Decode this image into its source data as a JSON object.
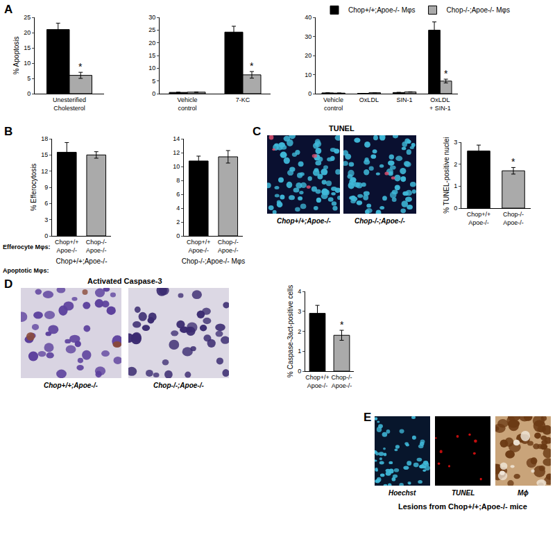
{
  "chart_data": [
    {
      "type": "bar",
      "ylabel": "% Apoptosis",
      "categories": [
        "Unesterified Cholesterol"
      ],
      "series": [
        {
          "name": "Chop+/+;Apoe-/- Mφs",
          "color": "#000000",
          "values": [
            21.0
          ],
          "errors": [
            2.1
          ]
        },
        {
          "name": "Chop-/-;Apoe-/- Mφs",
          "color": "#aaaaaa",
          "values": [
            6.0
          ],
          "errors": [
            1.0
          ]
        }
      ],
      "ylim": [
        0,
        25
      ],
      "yticks": [
        0,
        5,
        10,
        15,
        20,
        25
      ],
      "grid": false,
      "legend": "top",
      "annotations": [
        {
          "text": "*",
          "category": "Unesterified Cholesterol",
          "series": "Chop-/-;Apoe-/- Mφs"
        }
      ]
    },
    {
      "type": "bar",
      "categories": [
        "Vehicle control",
        "7-KC"
      ],
      "series": [
        {
          "name": "Chop+/+;Apoe-/- Mφs",
          "color": "#000000",
          "values": [
            0.5,
            24.2
          ],
          "errors": [
            0.1,
            2.3
          ]
        },
        {
          "name": "Chop-/-;Apoe-/- Mφs",
          "color": "#aaaaaa",
          "values": [
            0.6,
            7.4
          ],
          "errors": [
            0.1,
            1.3
          ]
        }
      ],
      "ylim": [
        0,
        30
      ],
      "yticks": [
        0,
        5,
        10,
        15,
        20,
        25,
        30
      ],
      "grid": false,
      "annotations": [
        {
          "text": "*",
          "category": "7-KC",
          "series": "Chop-/-;Apoe-/- Mφs"
        }
      ]
    },
    {
      "type": "bar",
      "categories": [
        "Vehicle control",
        "OxLDL",
        "SIN-1",
        "OxLDL + SIN-1"
      ],
      "series": [
        {
          "name": "Chop+/+;Apoe-/- Mφs",
          "color": "#000000",
          "values": [
            0.4,
            0.1,
            0.6,
            33.3
          ],
          "errors": [
            0.1,
            0.05,
            0.1,
            4.3
          ]
        },
        {
          "name": "Chop-/-;Apoe-/- Mφs",
          "color": "#aaaaaa",
          "values": [
            0.3,
            0.5,
            0.9,
            6.6
          ],
          "errors": [
            0.05,
            0.05,
            0.1,
            1.0
          ]
        }
      ],
      "ylim": [
        0,
        40
      ],
      "yticks": [
        0,
        10,
        20,
        30,
        40
      ],
      "grid": false,
      "annotations": [
        {
          "text": "*",
          "category": "OxLDL + SIN-1",
          "series": "Chop-/-;Apoe-/- Mφs"
        }
      ]
    },
    {
      "type": "bar",
      "ylabel": "% Efferocytosis",
      "xlabel": "Chop+/+;Apoe-/-",
      "categories": [
        "Chop+/+ Apoe-/-",
        "Chop-/- Apoe-/-"
      ],
      "values": [
        15.5,
        15.0
      ],
      "errors": [
        1.8,
        0.6
      ],
      "colors": [
        "#000000",
        "#aaaaaa"
      ],
      "ylim": [
        0,
        18
      ],
      "yticks": [
        0,
        3,
        6,
        9,
        12,
        15,
        18
      ],
      "grid": false
    },
    {
      "type": "bar",
      "xlabel": "Chop-/-;Apoe-/- Mφs",
      "categories": [
        "Chop+/+ Apoe-/-",
        "Chop-/- Apoe-/-"
      ],
      "values": [
        10.8,
        11.4
      ],
      "errors": [
        0.7,
        0.9
      ],
      "colors": [
        "#000000",
        "#aaaaaa"
      ],
      "ylim": [
        0,
        14
      ],
      "yticks": [
        0,
        2,
        4,
        6,
        8,
        10,
        12,
        14
      ],
      "grid": false
    },
    {
      "type": "bar",
      "ylabel": "% TUNEL-positive nuclei",
      "categories": [
        "Chop+/+ Apoe-/-",
        "Chop-/- Apoe-/-"
      ],
      "values": [
        2.6,
        1.7
      ],
      "errors": [
        0.27,
        0.15
      ],
      "colors": [
        "#000000",
        "#aaaaaa"
      ],
      "ylim": [
        0,
        3
      ],
      "yticks": [
        0,
        1,
        2,
        3
      ],
      "grid": false,
      "annotations": [
        {
          "text": "*",
          "category": "Chop-/- Apoe-/-"
        }
      ]
    },
    {
      "type": "bar",
      "ylabel": "% Caspase-3act-positive cells",
      "categories": [
        "Chop+/+ Apoe-/-",
        "Chop-/- Apoe-/-"
      ],
      "values": [
        2.9,
        1.8
      ],
      "errors": [
        0.4,
        0.25
      ],
      "colors": [
        "#000000",
        "#aaaaaa"
      ],
      "ylim": [
        0,
        4
      ],
      "yticks": [
        0,
        1,
        2,
        3,
        4
      ],
      "grid": false,
      "annotations": [
        {
          "text": "*",
          "category": "Chop-/- Apoe-/-"
        }
      ]
    }
  ],
  "panels": [
    "A",
    "B",
    "C",
    "D",
    "E"
  ],
  "row_labels": [
    "Efferocyte Mφs:",
    "Apoptotic Mφs:"
  ],
  "micrographs": [
    {
      "panel": "C",
      "title": "TUNEL",
      "images": [
        "Chop+/+;Apoe-/-",
        "Chop-/-;Apoe-/-"
      ]
    },
    {
      "panel": "D",
      "title": "Activated Caspase-3",
      "images": [
        "Chop+/+;Apoe-/-",
        "Chop-/-;Apoe-/-"
      ]
    },
    {
      "panel": "E",
      "images": [
        "Hoechst",
        "TUNEL",
        "Mϕ"
      ],
      "caption": "Lesions from Chop+/+;Apoe-/- mice"
    }
  ]
}
